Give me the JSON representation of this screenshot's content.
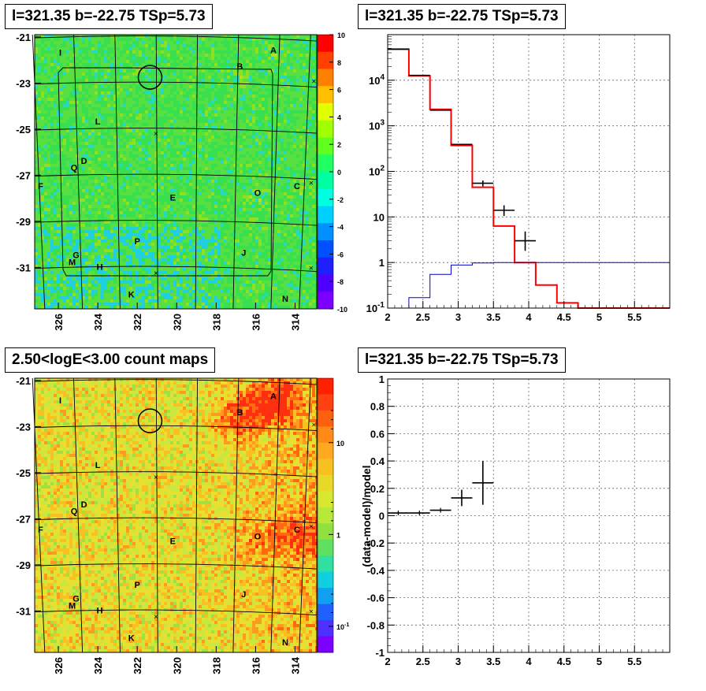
{
  "panels": {
    "tl": {
      "title": "l=321.35 b=-22.75 TSp=5.73"
    },
    "tr": {
      "title": "l=321.35 b=-22.75 TSp=5.73"
    },
    "bl": {
      "title": "2.50<logE<3.00 count maps"
    },
    "br": {
      "title": "l=321.35 b=-22.75 TSp=5.73"
    }
  },
  "colors": {
    "data": "#000000",
    "model": "#ff0000",
    "background_model": "#0000cc"
  },
  "chart_data": [
    {
      "id": "residual-map",
      "type": "heatmap",
      "title": "l=321.35 b=-22.75 TSp=5.73",
      "x_ticks": [
        "326",
        "324",
        "322",
        "320",
        "318",
        "316",
        "314"
      ],
      "x_tick_values": [
        326,
        324,
        322,
        320,
        318,
        316,
        314
      ],
      "y_ticks": [
        "-21",
        "-23",
        "-25",
        "-27",
        "-29",
        "-31"
      ],
      "y_tick_values": [
        -21,
        -23,
        -25,
        -27,
        -29,
        -31
      ],
      "xlim": [
        327.2,
        312.9
      ],
      "ylim": [
        -32.8,
        -20.9
      ],
      "colorbar": {
        "min": -10,
        "max": 10,
        "ticks": [
          "10",
          "8",
          "6",
          "4",
          "2",
          "0",
          "-2",
          "-4",
          "-6",
          "-8",
          "-10"
        ]
      },
      "source_labels": [
        {
          "text": "I",
          "l": 325.9,
          "b": -21.8
        },
        {
          "text": "A",
          "l": 315.1,
          "b": -21.7
        },
        {
          "text": "B",
          "l": 316.8,
          "b": -22.4
        },
        {
          "text": "L",
          "l": 324.0,
          "b": -24.8
        },
        {
          "text": "Q",
          "l": 325.2,
          "b": -26.8
        },
        {
          "text": "D",
          "l": 324.7,
          "b": -26.5
        },
        {
          "text": "F",
          "l": 326.9,
          "b": -27.6
        },
        {
          "text": "E",
          "l": 320.2,
          "b": -28.1
        },
        {
          "text": "O",
          "l": 315.9,
          "b": -27.9
        },
        {
          "text": "C",
          "l": 313.9,
          "b": -27.6
        },
        {
          "text": "P",
          "l": 322.0,
          "b": -30.0
        },
        {
          "text": "J",
          "l": 316.6,
          "b": -30.5
        },
        {
          "text": "G",
          "l": 325.1,
          "b": -30.6
        },
        {
          "text": "M",
          "l": 325.3,
          "b": -30.9
        },
        {
          "text": "H",
          "l": 323.9,
          "b": -31.1
        },
        {
          "text": "K",
          "l": 322.3,
          "b": -32.3
        },
        {
          "text": "N",
          "l": 314.5,
          "b": -32.5
        }
      ],
      "marked_position": {
        "l": 321.35,
        "b": -22.75
      }
    },
    {
      "id": "spectrum",
      "type": "line",
      "title": "l=321.35 b=-22.75 TSp=5.73",
      "log_y": true,
      "xlim": [
        2,
        6
      ],
      "ylim": [
        0.1,
        100000
      ],
      "x_ticks": [
        "2",
        "2.5",
        "3",
        "3.5",
        "4",
        "4.5",
        "5",
        "5.5"
      ],
      "y_ticks": [
        "10^-1",
        "1",
        "10",
        "10^2",
        "10^3",
        "10^4"
      ],
      "bin_edges": [
        2,
        2.3,
        2.6,
        2.9,
        3.2,
        3.5,
        3.8,
        4.1,
        4.4,
        4.7,
        5.0,
        5.3,
        5.6,
        6.0
      ],
      "series": [
        {
          "role": "model",
          "color": "#ff0000",
          "values": [
            48000,
            12500,
            2300,
            370,
            45,
            6.3,
            1.0,
            0.32,
            0.13,
            0.1,
            0.1,
            0.1,
            0.1
          ]
        },
        {
          "role": "background_model",
          "color": "#0000cc",
          "values": [
            0.1,
            0.17,
            0.55,
            0.88,
            0.98,
            1.0,
            1.0,
            1.0,
            1.0,
            1.0,
            1.0,
            1.0,
            1.0
          ]
        }
      ],
      "data_points": [
        {
          "x": 2.15,
          "y": 48000,
          "xerr": 0.15
        },
        {
          "x": 2.45,
          "y": 12800,
          "xerr": 0.15
        },
        {
          "x": 2.75,
          "y": 2200,
          "xerr": 0.15
        },
        {
          "x": 3.05,
          "y": 390,
          "xerr": 0.15
        },
        {
          "x": 3.35,
          "y": 55,
          "xerr": 0.15,
          "ylo": 47,
          "yhi": 63
        },
        {
          "x": 3.65,
          "y": 14,
          "xerr": 0.15,
          "ylo": 10.5,
          "yhi": 18
        },
        {
          "x": 3.95,
          "y": 3.0,
          "xerr": 0.15,
          "ylo": 1.8,
          "yhi": 4.8
        }
      ]
    },
    {
      "id": "count-map",
      "type": "heatmap",
      "title": "2.50<logE<3.00 count maps",
      "x_ticks": [
        "326",
        "324",
        "322",
        "320",
        "318",
        "316",
        "314"
      ],
      "x_tick_values": [
        326,
        324,
        322,
        320,
        318,
        316,
        314
      ],
      "y_ticks": [
        "-21",
        "-23",
        "-25",
        "-27",
        "-29",
        "-31"
      ],
      "y_tick_values": [
        -21,
        -23,
        -25,
        -27,
        -29,
        -31
      ],
      "xlim": [
        327.2,
        312.9
      ],
      "ylim": [
        -32.8,
        -20.9
      ],
      "colorbar": {
        "log": true,
        "ticks": [
          "10",
          "1",
          "10^-1"
        ]
      },
      "source_labels": [
        {
          "text": "I",
          "l": 325.9,
          "b": -22.0
        },
        {
          "text": "A",
          "l": 315.1,
          "b": -21.8
        },
        {
          "text": "B",
          "l": 316.8,
          "b": -22.5
        },
        {
          "text": "L",
          "l": 324.0,
          "b": -24.8
        },
        {
          "text": "Q",
          "l": 325.2,
          "b": -26.8
        },
        {
          "text": "D",
          "l": 324.7,
          "b": -26.5
        },
        {
          "text": "F",
          "l": 326.9,
          "b": -27.6
        },
        {
          "text": "E",
          "l": 320.2,
          "b": -28.1
        },
        {
          "text": "O",
          "l": 315.9,
          "b": -27.9
        },
        {
          "text": "C",
          "l": 313.9,
          "b": -27.6
        },
        {
          "text": "P",
          "l": 322.0,
          "b": -30.0
        },
        {
          "text": "J",
          "l": 316.6,
          "b": -30.4
        },
        {
          "text": "G",
          "l": 325.1,
          "b": -30.6
        },
        {
          "text": "M",
          "l": 325.3,
          "b": -30.9
        },
        {
          "text": "H",
          "l": 323.9,
          "b": -31.1
        },
        {
          "text": "K",
          "l": 322.3,
          "b": -32.3
        },
        {
          "text": "N",
          "l": 314.5,
          "b": -32.5
        }
      ],
      "marked_position": {
        "l": 321.35,
        "b": -22.75
      }
    },
    {
      "id": "residuals",
      "type": "scatter",
      "title": "l=321.35 b=-22.75 TSp=5.73",
      "ylabel": "(data-model)/model",
      "xlim": [
        2,
        6
      ],
      "ylim": [
        -1,
        1
      ],
      "x_ticks": [
        "2",
        "2.5",
        "3",
        "3.5",
        "4",
        "4.5",
        "5",
        "5.5"
      ],
      "y_ticks": [
        "1",
        "0.8",
        "0.6",
        "0.4",
        "0.2",
        "0",
        "-0.2",
        "-0.4",
        "-0.6",
        "-0.8",
        "-1"
      ],
      "data_points": [
        {
          "x": 2.15,
          "y": 0.02,
          "xerr": 0.15
        },
        {
          "x": 2.45,
          "y": 0.02,
          "xerr": 0.15
        },
        {
          "x": 2.75,
          "y": 0.04,
          "xerr": 0.15
        },
        {
          "x": 3.05,
          "y": 0.13,
          "xerr": 0.15,
          "ylo": 0.07,
          "yhi": 0.19
        },
        {
          "x": 3.35,
          "y": 0.24,
          "xerr": 0.15,
          "ylo": 0.08,
          "yhi": 0.4
        }
      ]
    }
  ]
}
